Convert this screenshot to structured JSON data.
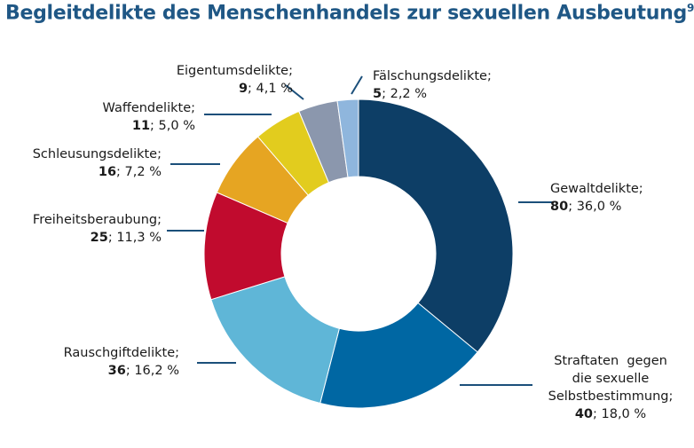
{
  "chart_data": {
    "type": "pie",
    "variant": "donut",
    "title": "Begleitdelikte des Menschenhandels zur sexuellen Ausbeutung",
    "title_footnote": "9",
    "slices": [
      {
        "id": "gewalt",
        "lines": [
          "Gewaltdelikte;"
        ],
        "count": "80",
        "percent": "36,0 %",
        "value": 36.0,
        "color": "#0d3e66"
      },
      {
        "id": "selbst",
        "lines": [
          "Straftaten  gegen",
          "die sexuelle",
          "Selbstbestimmung;"
        ],
        "count": "40",
        "percent": "18,0 %",
        "value": 18.0,
        "color": "#0067a3"
      },
      {
        "id": "rausch",
        "lines": [
          "Rauschgiftdelikte;"
        ],
        "count": "36",
        "percent": "16,2 %",
        "value": 16.2,
        "color": "#5fb6d7"
      },
      {
        "id": "freiheit",
        "lines": [
          "Freiheitsberaubung;"
        ],
        "count": "25",
        "percent": "11,3 %",
        "value": 11.3,
        "color": "#c10b2e"
      },
      {
        "id": "schleusung",
        "lines": [
          "Schleusungsdelikte;"
        ],
        "count": "16",
        "percent": "7,2 %",
        "value": 7.2,
        "color": "#e6a522"
      },
      {
        "id": "waffen",
        "lines": [
          "Waffendelikte;"
        ],
        "count": "11",
        "percent": "5,0 %",
        "value": 5.0,
        "color": "#e2cc1e"
      },
      {
        "id": "eigentum",
        "lines": [
          "Eigentumsdelikte;"
        ],
        "count": "9",
        "percent": "4,1 %",
        "value": 4.1,
        "color": "#8b97ad"
      },
      {
        "id": "faelschung",
        "lines": [
          "Fälschungsdelikte;"
        ],
        "count": "5",
        "percent": "2,2 %",
        "value": 2.2,
        "color": "#8fb6dd"
      }
    ],
    "leader_color": "#1b4f7a"
  }
}
